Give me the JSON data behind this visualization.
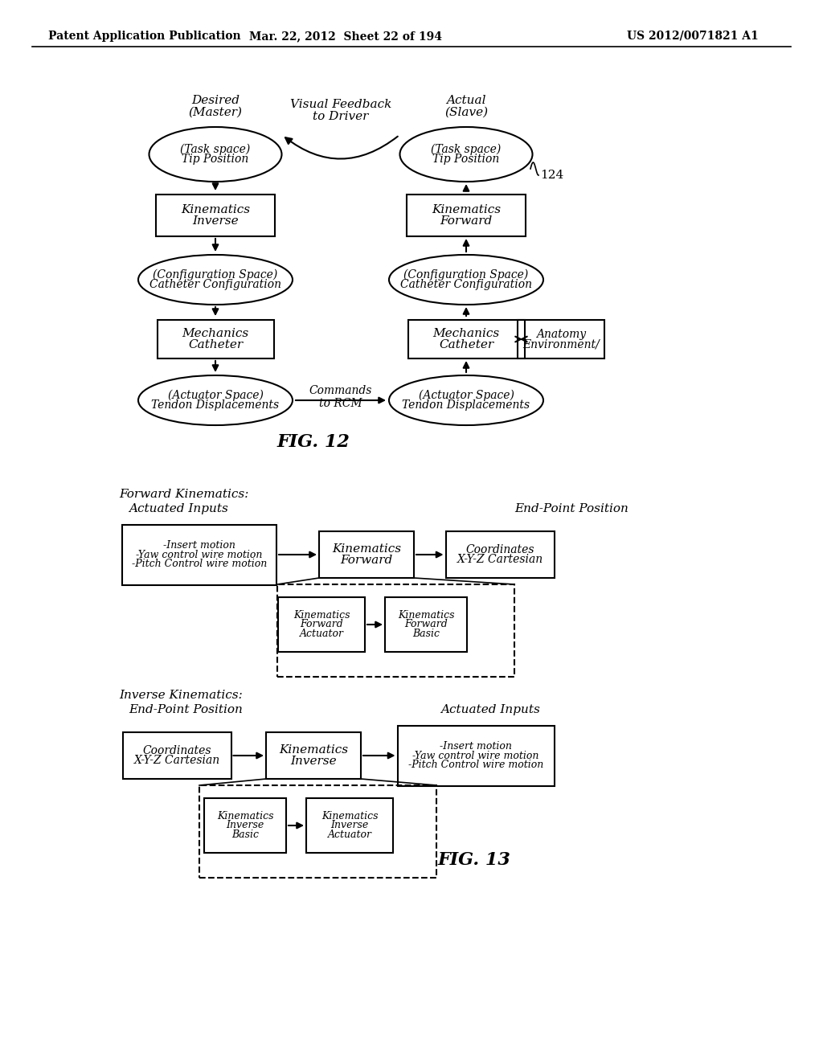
{
  "header_left": "Patent Application Publication",
  "header_mid": "Mar. 22, 2012  Sheet 22 of 194",
  "header_right": "US 2012/0071821 A1",
  "fig12_label": "FIG. 12",
  "fig13_label": "FIG. 13",
  "background": "#ffffff"
}
